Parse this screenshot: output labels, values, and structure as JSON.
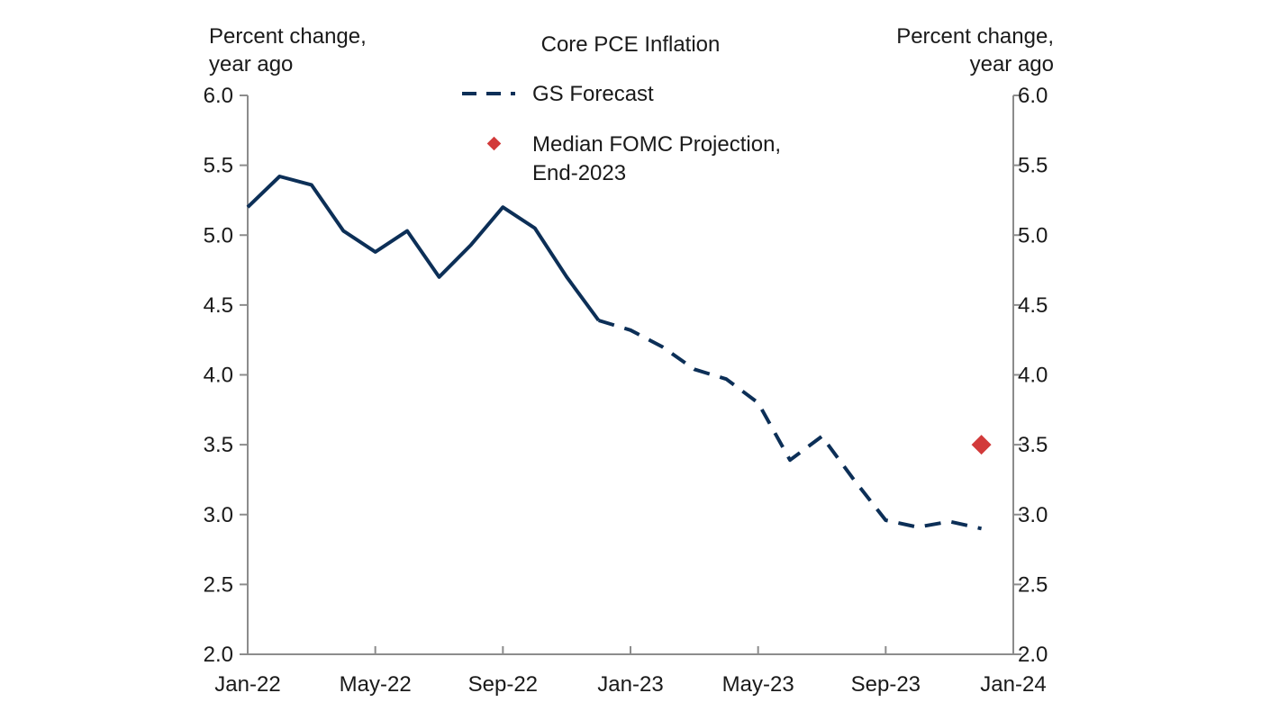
{
  "chart_data": {
    "type": "line",
    "title": "Core PCE Inflation",
    "ylabel_left": [
      "Percent change,",
      "year ago"
    ],
    "ylabel_right": [
      "Percent change,",
      "year ago"
    ],
    "xlabel": "",
    "x_ticks": [
      "Jan-22",
      "May-22",
      "Sep-22",
      "Jan-23",
      "May-23",
      "Sep-23",
      "Jan-24"
    ],
    "y_ticks": [
      "6.0",
      "5.5",
      "5.0",
      "4.5",
      "4.0",
      "3.5",
      "3.0",
      "2.5",
      "2.0"
    ],
    "ylim": [
      2.0,
      6.0
    ],
    "xlim": [
      "2022-01",
      "2024-01"
    ],
    "grid": false,
    "legend_position": "top-center",
    "series": [
      {
        "style": "solid",
        "color": "#0c2f57",
        "points": [
          {
            "x": "2022-01",
            "y": 5.2
          },
          {
            "x": "2022-02",
            "y": 5.42
          },
          {
            "x": "2022-03",
            "y": 5.36
          },
          {
            "x": "2022-04",
            "y": 5.03
          },
          {
            "x": "2022-05",
            "y": 4.88
          },
          {
            "x": "2022-06",
            "y": 5.03
          },
          {
            "x": "2022-07",
            "y": 4.7
          },
          {
            "x": "2022-08",
            "y": 4.93
          },
          {
            "x": "2022-09",
            "y": 5.2
          },
          {
            "x": "2022-10",
            "y": 5.05
          },
          {
            "x": "2022-11",
            "y": 4.7
          },
          {
            "x": "2022-12",
            "y": 4.39
          }
        ]
      },
      {
        "name": "GS Forecast",
        "style": "dashed",
        "color": "#0c2f57",
        "points": [
          {
            "x": "2022-12",
            "y": 4.39
          },
          {
            "x": "2023-01",
            "y": 4.32
          },
          {
            "x": "2023-02",
            "y": 4.2
          },
          {
            "x": "2023-03",
            "y": 4.04
          },
          {
            "x": "2023-04",
            "y": 3.97
          },
          {
            "x": "2023-05",
            "y": 3.8
          },
          {
            "x": "2023-06",
            "y": 3.39
          },
          {
            "x": "2023-07",
            "y": 3.56
          },
          {
            "x": "2023-08",
            "y": 3.25
          },
          {
            "x": "2023-09",
            "y": 2.96
          },
          {
            "x": "2023-10",
            "y": 2.91
          },
          {
            "x": "2023-11",
            "y": 2.95
          },
          {
            "x": "2023-12",
            "y": 2.9
          }
        ]
      }
    ],
    "markers": [
      {
        "name": "Median FOMC Projection,",
        "name_line2": "End-2023",
        "x": "2023-12",
        "y": 3.5,
        "color": "#d23a3a",
        "shape": "diamond"
      }
    ]
  }
}
